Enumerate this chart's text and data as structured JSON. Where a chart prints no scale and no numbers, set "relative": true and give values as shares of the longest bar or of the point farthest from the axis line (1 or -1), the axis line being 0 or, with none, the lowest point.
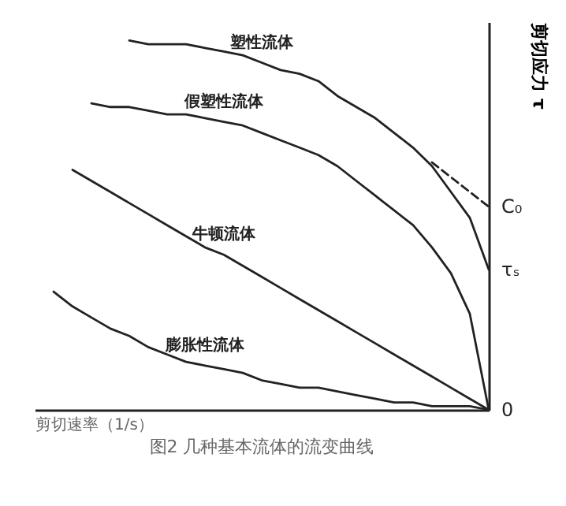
{
  "chart_data": {
    "type": "line",
    "relative": true,
    "title": "图2 几种基本流体的流变曲线",
    "xlabel": "剪切速率（1/s）",
    "ylabel": "剪切应力 τ",
    "categories": [
      null,
      null,
      null,
      null,
      null,
      null,
      null,
      null,
      null,
      null,
      null,
      null,
      null,
      null,
      null,
      null,
      null,
      null,
      null,
      null,
      null,
      null,
      null,
      null,
      null
    ],
    "series": [
      {
        "name": "塑性流体",
        "color": "#222222",
        "values": [
          null,
          null,
          null,
          null,
          null,
          1.0,
          0.99,
          0.99,
          0.99,
          0.98,
          0.97,
          0.96,
          0.94,
          0.92,
          0.91,
          0.89,
          0.85,
          0.82,
          0.79,
          0.75,
          0.71,
          0.66,
          0.59,
          0.52,
          0.38
        ]
      },
      {
        "name": "假塑性流体",
        "color": "#222222",
        "values": [
          null,
          null,
          null,
          0.83,
          0.82,
          0.82,
          0.81,
          0.8,
          0.8,
          0.79,
          0.78,
          0.77,
          0.75,
          0.73,
          0.71,
          0.69,
          0.66,
          0.62,
          0.58,
          0.54,
          0.5,
          0.44,
          0.37,
          0.26,
          0
        ]
      },
      {
        "name": "牛顿流体",
        "color": "#222222",
        "values": [
          null,
          null,
          0.65,
          0.62,
          0.59,
          0.56,
          0.53,
          0.5,
          0.47,
          0.44,
          0.42,
          0.39,
          0.36,
          0.33,
          0.3,
          0.27,
          0.24,
          0.21,
          0.18,
          0.15,
          0.12,
          0.09,
          0.06,
          0.03,
          0
        ]
      },
      {
        "name": "膨胀性流体",
        "color": "#222222",
        "values": [
          null,
          0.32,
          0.28,
          0.25,
          0.22,
          0.2,
          0.17,
          0.15,
          0.13,
          0.12,
          0.11,
          0.1,
          0.08,
          0.07,
          0.06,
          0.06,
          0.05,
          0.04,
          0.03,
          0.02,
          0.02,
          0.01,
          0.01,
          0.01,
          0
        ]
      },
      {
        "color": "#222222",
        "line_style": "dashed",
        "values": [
          null,
          null,
          null,
          null,
          null,
          null,
          null,
          null,
          null,
          null,
          null,
          null,
          null,
          null,
          null,
          null,
          null,
          null,
          null,
          null,
          null,
          0.67,
          0.63,
          0.59,
          0.55
        ]
      }
    ],
    "annotations": [
      "C₀",
      "τₛ",
      "0"
    ]
  }
}
